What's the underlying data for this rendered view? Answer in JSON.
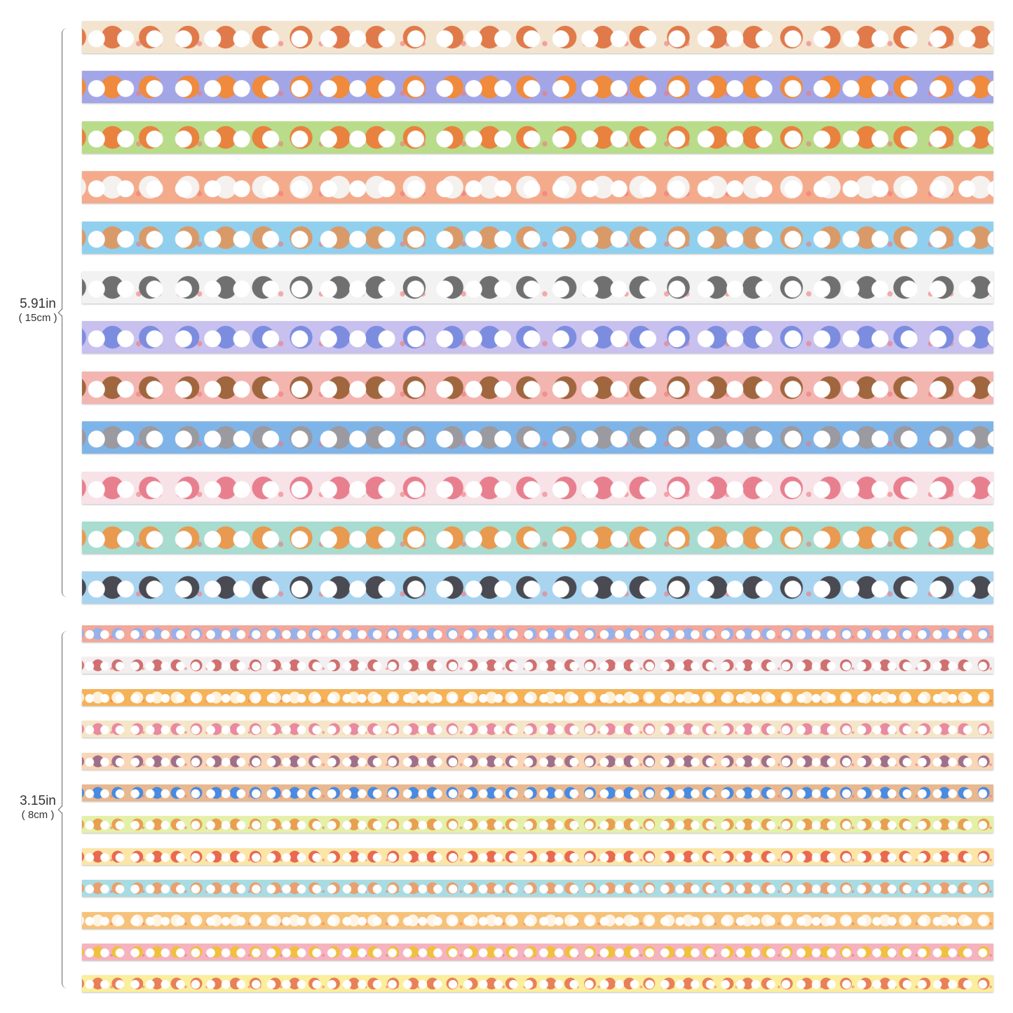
{
  "dimensions": {
    "wide": {
      "main": "5.91in",
      "sub": "( 15cm )"
    },
    "narrow": {
      "main": "3.15in",
      "sub": "( 8cm )"
    }
  },
  "tapes": {
    "wide": [
      {
        "base": "#f3e4d0",
        "accent": "#e07a4a"
      },
      {
        "base": "#a3a6e6",
        "accent": "#f08a3c"
      },
      {
        "base": "#b9dc8a",
        "accent": "#e8823e"
      },
      {
        "base": "#f4ab8c",
        "accent": "#f5f1ee"
      },
      {
        "base": "#90d0ee",
        "accent": "#d99a6a"
      },
      {
        "base": "#f2f2f2",
        "accent": "#707070"
      },
      {
        "base": "#c8c0ee",
        "accent": "#7c8de0"
      },
      {
        "base": "#f2b5b0",
        "accent": "#a0663e"
      },
      {
        "base": "#7fb4e8",
        "accent": "#9a9aa0"
      },
      {
        "base": "#f7e2e8",
        "accent": "#e87f8f"
      },
      {
        "base": "#a8dcd0",
        "accent": "#e89a50"
      },
      {
        "base": "#a9d4f0",
        "accent": "#4a4a52"
      }
    ],
    "narrow": [
      {
        "base": "#f2a89a",
        "accent": "#9ab0e8"
      },
      {
        "base": "#f3eef0",
        "accent": "#d07070"
      },
      {
        "base": "#f5b257",
        "accent": "#fff0d8"
      },
      {
        "base": "#f5e6c8",
        "accent": "#e88aa0"
      },
      {
        "base": "#f8d6b6",
        "accent": "#a0708a"
      },
      {
        "base": "#e8b890",
        "accent": "#4a8ae0"
      },
      {
        "base": "#e4f0a8",
        "accent": "#e8a050"
      },
      {
        "base": "#fbe6a8",
        "accent": "#e86a50"
      },
      {
        "base": "#a9dce2",
        "accent": "#e8a070"
      },
      {
        "base": "#f6c27a",
        "accent": "#fff4e4"
      },
      {
        "base": "#f5b3c0",
        "accent": "#f0c040"
      },
      {
        "base": "#fbee9c",
        "accent": "#e8805a"
      }
    ]
  }
}
